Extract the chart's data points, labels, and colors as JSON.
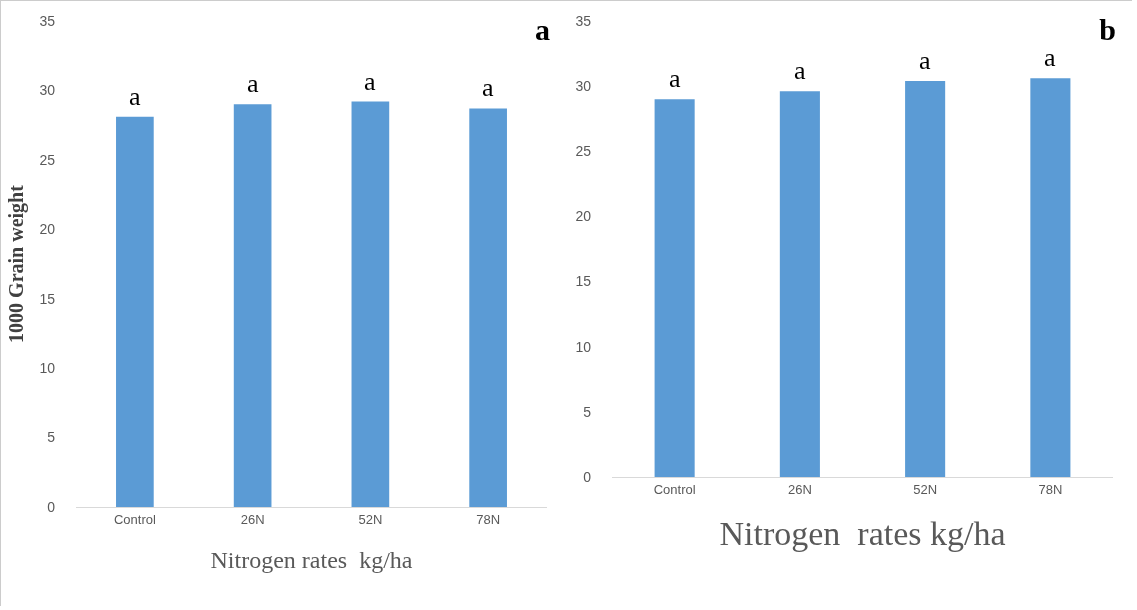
{
  "chart_data": [
    {
      "type": "bar",
      "title": "a",
      "ylabel": "1000 Grain weight",
      "xlabel": "Nitrogen rates  kg/ha",
      "categories": [
        "Control",
        "26N",
        "52N",
        "78N"
      ],
      "values": [
        28.1,
        29.0,
        29.2,
        28.7
      ],
      "color": "#5b9bd5",
      "ylim": [
        0,
        35
      ],
      "yticks": [
        0,
        5,
        10,
        15,
        20,
        25,
        30,
        35
      ],
      "grid": false,
      "annotations": [
        {
          "text": "a",
          "x": "Control",
          "y": 28.1
        },
        {
          "text": "a",
          "x": "26N",
          "y": 29.0
        },
        {
          "text": "a",
          "x": "52N",
          "y": 29.2
        },
        {
          "text": "a",
          "x": "78N",
          "y": 28.7
        }
      ]
    },
    {
      "type": "bar",
      "title": "b",
      "xlabel": "Nitrogen  rates kg/ha",
      "categories": [
        "Control",
        "26N",
        "52N",
        "78N"
      ],
      "values": [
        29.0,
        29.6,
        30.4,
        30.6
      ],
      "color": "#5b9bd5",
      "ylim": [
        0,
        35
      ],
      "yticks": [
        0,
        5,
        10,
        15,
        20,
        25,
        30,
        35
      ],
      "grid": false,
      "annotations": [
        {
          "text": "a",
          "x": "Control",
          "y": 29.0
        },
        {
          "text": "a",
          "x": "26N",
          "y": 29.6
        },
        {
          "text": "a",
          "x": "52N",
          "y": 30.4
        },
        {
          "text": "a",
          "x": "78N",
          "y": 30.6
        }
      ]
    }
  ]
}
